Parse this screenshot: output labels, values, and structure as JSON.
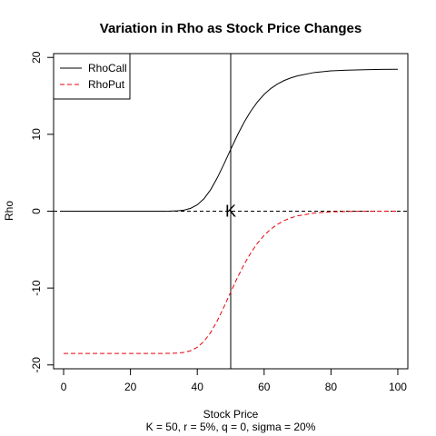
{
  "chart_data": {
    "type": "line",
    "title": "Variation in Rho as Stock Price Changes",
    "xlabel": "Stock Price",
    "subtitle": "K = 50, r = 5%, q = 0, sigma = 20%",
    "ylabel": "Rho",
    "xlim": [
      -3,
      103
    ],
    "ylim": [
      -20.5,
      20.5
    ],
    "xticks": [
      0,
      20,
      40,
      60,
      80,
      100
    ],
    "yticks": [
      -20,
      -10,
      0,
      10,
      20
    ],
    "grid": false,
    "legend_position": "top-left",
    "x": [
      0,
      5,
      10,
      15,
      20,
      25,
      30,
      32,
      34,
      36,
      38,
      40,
      42,
      44,
      46,
      48,
      50,
      52,
      54,
      56,
      58,
      60,
      62,
      64,
      66,
      68,
      70,
      75,
      80,
      85,
      90,
      95,
      100
    ],
    "series": [
      {
        "name": "RhoCall",
        "color": "#000000",
        "dash": "solid",
        "values": [
          0,
          0,
          0,
          0,
          0,
          0,
          0.003,
          0.013,
          0.046,
          0.14,
          0.37,
          0.83,
          1.62,
          2.8,
          4.35,
          6.15,
          8.04,
          9.88,
          11.56,
          13.01,
          14.22,
          15.2,
          15.96,
          16.55,
          17.0,
          17.34,
          17.6,
          18.04,
          18.25,
          18.35,
          18.41,
          18.44,
          18.46
        ]
      },
      {
        "name": "RhoPut",
        "color": "#e8000b",
        "dash": "dashed",
        "values": [
          -18.5,
          -18.5,
          -18.5,
          -18.5,
          -18.5,
          -18.5,
          -18.5,
          -18.49,
          -18.46,
          -18.37,
          -18.15,
          -17.7,
          -16.94,
          -15.78,
          -14.24,
          -12.43,
          -10.52,
          -8.65,
          -6.93,
          -5.43,
          -4.17,
          -3.14,
          -2.33,
          -1.7,
          -1.22,
          -0.87,
          -0.61,
          -0.24,
          -0.09,
          -0.03,
          -0.01,
          0,
          0
        ]
      }
    ],
    "reference_lines": {
      "vertical_x": 50,
      "horizontal_y": 0
    },
    "annotations": [
      {
        "text": "K",
        "x": 50,
        "y": 0
      }
    ]
  }
}
